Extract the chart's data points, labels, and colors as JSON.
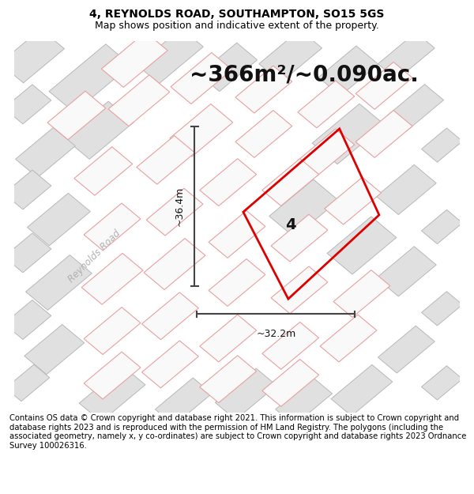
{
  "title": "4, REYNOLDS ROAD, SOUTHAMPTON, SO15 5GS",
  "subtitle": "Map shows position and indicative extent of the property.",
  "area_label": "~366m²/~0.090ac.",
  "width_label": "~32.2m",
  "height_label": "~36.4m",
  "plot_number": "4",
  "road_label": "Reynolds Road",
  "footer_text": "Contains OS data © Crown copyright and database right 2021. This information is subject to Crown copyright and database rights 2023 and is reproduced with the permission of HM Land Registry. The polygons (including the associated geometry, namely x, y co-ordinates) are subject to Crown copyright and database rights 2023 Ordnance Survey 100026316.",
  "bg_color": "#ffffff",
  "map_bg": "#f7f7f7",
  "plot_color": "#dd0000",
  "building_gray_fill": "#e0e0e0",
  "building_gray_edge": "#b8b8b8",
  "building_pink_fill": "#f9f9f9",
  "building_pink_edge": "#e8a0a0",
  "road_fill": "#f0f0f0",
  "title_fontsize": 10,
  "subtitle_fontsize": 9,
  "area_fontsize": 20,
  "footer_fontsize": 7.2,
  "measure_color": "#444444",
  "road_label_color": "#b0b0b0",
  "number_fontsize": 14
}
